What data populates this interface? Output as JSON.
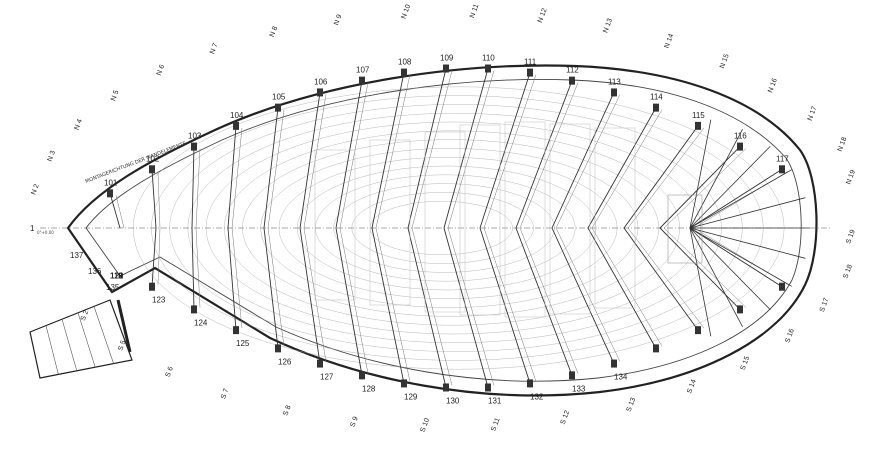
{
  "drawing": {
    "origin_label": "1",
    "origin_sub": "0°+0.00",
    "mount_note": "MONTAGERICHTUNG DER WANDELEMENTE",
    "outer_labels_top": [
      "101",
      "102",
      "103",
      "104",
      "105",
      "106",
      "107",
      "108",
      "109",
      "110",
      "111",
      "112",
      "113",
      "114",
      "115",
      "116",
      "117"
    ],
    "outer_labels_bottom": [
      "137",
      "136",
      "135",
      "134",
      "133",
      "132",
      "131",
      "130",
      "129",
      "128",
      "127",
      "126",
      "125",
      "124",
      "123",
      "122",
      "121",
      "120",
      "119",
      "118"
    ],
    "north_axes": [
      "N 2",
      "N 3",
      "N 4",
      "N 5",
      "N 6",
      "N 7",
      "N 8",
      "N 9",
      "N 10",
      "N 11",
      "N 12",
      "N 13",
      "N 14",
      "N 15",
      "N 16",
      "N 17",
      "N 18",
      "N 19"
    ],
    "south_axes": [
      "S 2",
      "S 5",
      "S 6",
      "S 7",
      "S 8",
      "S 9",
      "S 10",
      "S 11",
      "S 12",
      "S 13",
      "S 14",
      "S 15",
      "S 16",
      "S 17",
      "S 18",
      "S 19"
    ]
  }
}
